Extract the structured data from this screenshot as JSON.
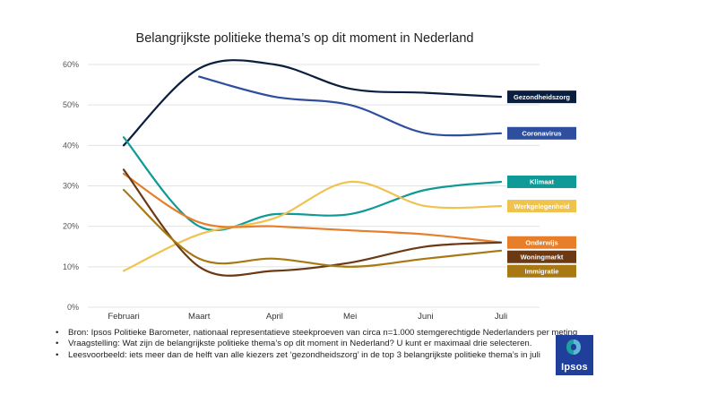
{
  "chart_data": {
    "type": "line",
    "title": "Belangrijkste politieke thema’s op dit moment in Nederland",
    "xlabel": "",
    "ylabel": "",
    "categories": [
      "Februari",
      "Maart",
      "April",
      "Mei",
      "Juni",
      "Juli"
    ],
    "ylim": [
      0,
      60
    ],
    "yticks": [
      0,
      10,
      20,
      30,
      40,
      50,
      60
    ],
    "ytick_labels": [
      "0%",
      "10%",
      "20%",
      "30%",
      "40%",
      "50%",
      "60%"
    ],
    "grid": true,
    "legend": "right, labels at line ends",
    "series": [
      {
        "name": "Gezondheidszorg",
        "color": "#0a1f3f",
        "values": [
          40,
          59,
          60,
          54,
          53,
          52
        ]
      },
      {
        "name": "Coronavirus",
        "color": "#2e4e9e",
        "values": [
          null,
          57,
          52,
          50,
          43,
          43
        ]
      },
      {
        "name": "Klimaat",
        "color": "#0f9a98",
        "values": [
          42,
          20,
          23,
          23,
          29,
          31
        ]
      },
      {
        "name": "Werkgelegenheid",
        "color": "#f0c24e",
        "values": [
          9,
          18,
          22,
          31,
          25,
          25
        ]
      },
      {
        "name": "Onderwijs",
        "color": "#e67e2a",
        "values": [
          33,
          21,
          20,
          19,
          18,
          16
        ]
      },
      {
        "name": "Woningmarkt",
        "color": "#6b3a14",
        "values": [
          34,
          10,
          9,
          11,
          15,
          16
        ]
      },
      {
        "name": "Immigratie",
        "color": "#a87812",
        "values": [
          29,
          12,
          12,
          10,
          12,
          14
        ]
      }
    ]
  },
  "notes": [
    "Bron: Ipsos Politieke Barometer, nationaal representatieve steekproeven van circa n=1.000 stemgerechtigde Nederlanders per meting",
    "Vraagstelling: Wat zijn de belangrijkste politieke thema’s op dit moment in Nederland? U kunt er maximaal drie selecteren.",
    "Leesvoorbeeld: iets meer dan de helft van alle kiezers zet ‘gezondheidszorg’ in de top 3 belangrijkste politieke thema’s in juli"
  ],
  "logo": {
    "text": "Ipsos",
    "color": "#1f3f9a"
  }
}
